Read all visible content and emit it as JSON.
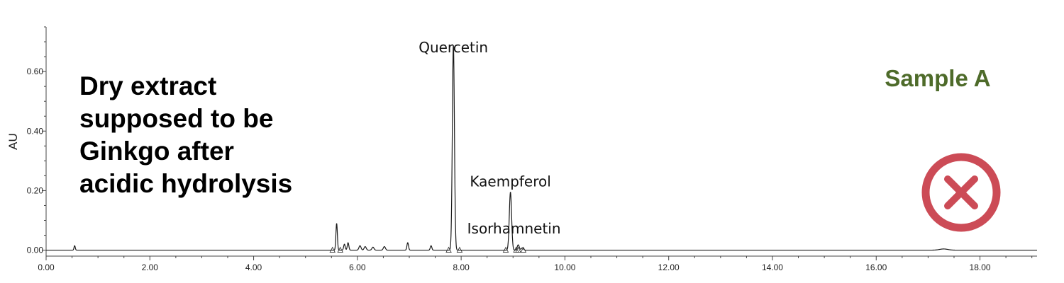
{
  "chart_data": {
    "type": "line",
    "xlim": [
      0,
      19.1
    ],
    "ylim": [
      -0.02,
      0.75
    ],
    "ylabel": "AU",
    "xlabel": "",
    "grid": false,
    "x_ticks": [
      {
        "value": 0,
        "label": "0.00"
      },
      {
        "value": 2,
        "label": "2.00"
      },
      {
        "value": 4,
        "label": "4.00"
      },
      {
        "value": 6,
        "label": "6.00"
      },
      {
        "value": 8,
        "label": "8.00"
      },
      {
        "value": 10,
        "label": "10.00"
      },
      {
        "value": 12,
        "label": "12.00"
      },
      {
        "value": 14,
        "label": "14.00"
      },
      {
        "value": 16,
        "label": "16.00"
      },
      {
        "value": 18,
        "label": "18.00"
      }
    ],
    "y_ticks": [
      {
        "value": 0,
        "label": "0.00"
      },
      {
        "value": 0.2,
        "label": "0.20"
      },
      {
        "value": 0.4,
        "label": "0.40"
      },
      {
        "value": 0.6,
        "label": "0.60"
      }
    ],
    "baseline": 0.0,
    "peaks": [
      {
        "rt": 0.55,
        "height": 0.015,
        "width": 0.012
      },
      {
        "rt": 5.6,
        "height": 0.09,
        "width": 0.014
      },
      {
        "rt": 5.75,
        "height": 0.02,
        "width": 0.015
      },
      {
        "rt": 5.82,
        "height": 0.025,
        "width": 0.015
      },
      {
        "rt": 6.05,
        "height": 0.015,
        "width": 0.02
      },
      {
        "rt": 6.15,
        "height": 0.012,
        "width": 0.02
      },
      {
        "rt": 6.3,
        "height": 0.01,
        "width": 0.02
      },
      {
        "rt": 6.52,
        "height": 0.012,
        "width": 0.02
      },
      {
        "rt": 6.97,
        "height": 0.025,
        "width": 0.015
      },
      {
        "rt": 7.42,
        "height": 0.015,
        "width": 0.015
      },
      {
        "rt": 7.85,
        "height": 0.69,
        "width": 0.02
      },
      {
        "rt": 8.95,
        "height": 0.195,
        "width": 0.022
      },
      {
        "rt": 9.1,
        "height": 0.018,
        "width": 0.02
      },
      {
        "rt": 9.18,
        "height": 0.008,
        "width": 0.02
      },
      {
        "rt": 17.3,
        "height": 0.004,
        "width": 0.08
      }
    ],
    "integration_markers": [
      5.52,
      5.67,
      7.76,
      7.97,
      8.86,
      9.06,
      9.1,
      9.2
    ],
    "annotations": [
      {
        "text": "Quercetin",
        "rt": 7.85
      },
      {
        "text": "Kaempferol",
        "rt": 8.95
      },
      {
        "text": "Isorhamnetin",
        "rt": 9.1
      }
    ]
  },
  "description_lines": [
    "Dry extract",
    "supposed to be",
    "Ginkgo after",
    "acidic hydrolysis"
  ],
  "sample_label": "Sample A",
  "status_icon": "cross-circle-icon",
  "colors": {
    "trace": "#1a1a1a",
    "axis": "#444444",
    "sample_label": "#4e6b2a",
    "reject_icon": "#cc4b56"
  }
}
